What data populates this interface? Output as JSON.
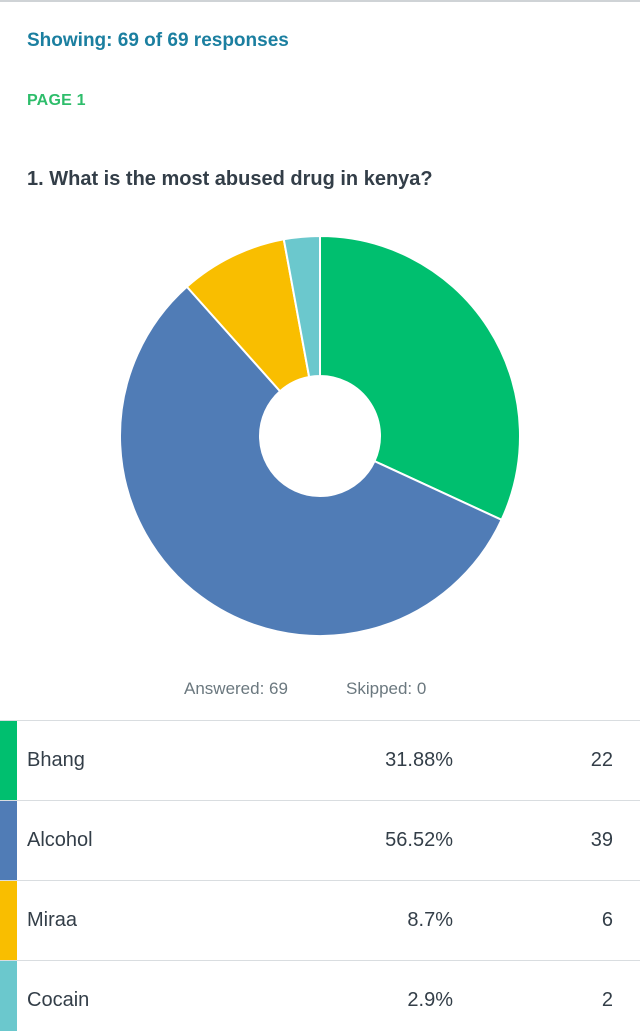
{
  "header": {
    "showing": "Showing: 69 of 69 responses",
    "page_label": "PAGE 1"
  },
  "question": {
    "title": "1. What is the most abused drug in kenya?"
  },
  "stats": {
    "answered": "Answered: 69",
    "skipped": "Skipped: 0"
  },
  "chart_data": {
    "type": "pie",
    "donut": true,
    "categories": [
      "Bhang",
      "Alcohol",
      "Miraa",
      "Cocain"
    ],
    "values": [
      22,
      39,
      6,
      2
    ],
    "percentages": [
      31.88,
      56.52,
      8.7,
      2.9
    ],
    "colors": [
      "#00bf6f",
      "#507cb6",
      "#f9be00",
      "#6bc8cd"
    ],
    "start": "12 o'clock",
    "direction": "clockwise",
    "legend": "table-below"
  },
  "table": {
    "rows": [
      {
        "label": "Bhang",
        "percent": "31.88%",
        "count": "22",
        "color": "#00bf6f"
      },
      {
        "label": "Alcohol",
        "percent": "56.52%",
        "count": "39",
        "color": "#507cb6"
      },
      {
        "label": "Miraa",
        "percent": "8.7%",
        "count": "6",
        "color": "#f9be00"
      },
      {
        "label": "Cocain",
        "percent": "2.9%",
        "count": "2",
        "color": "#6bc8cd"
      }
    ]
  }
}
